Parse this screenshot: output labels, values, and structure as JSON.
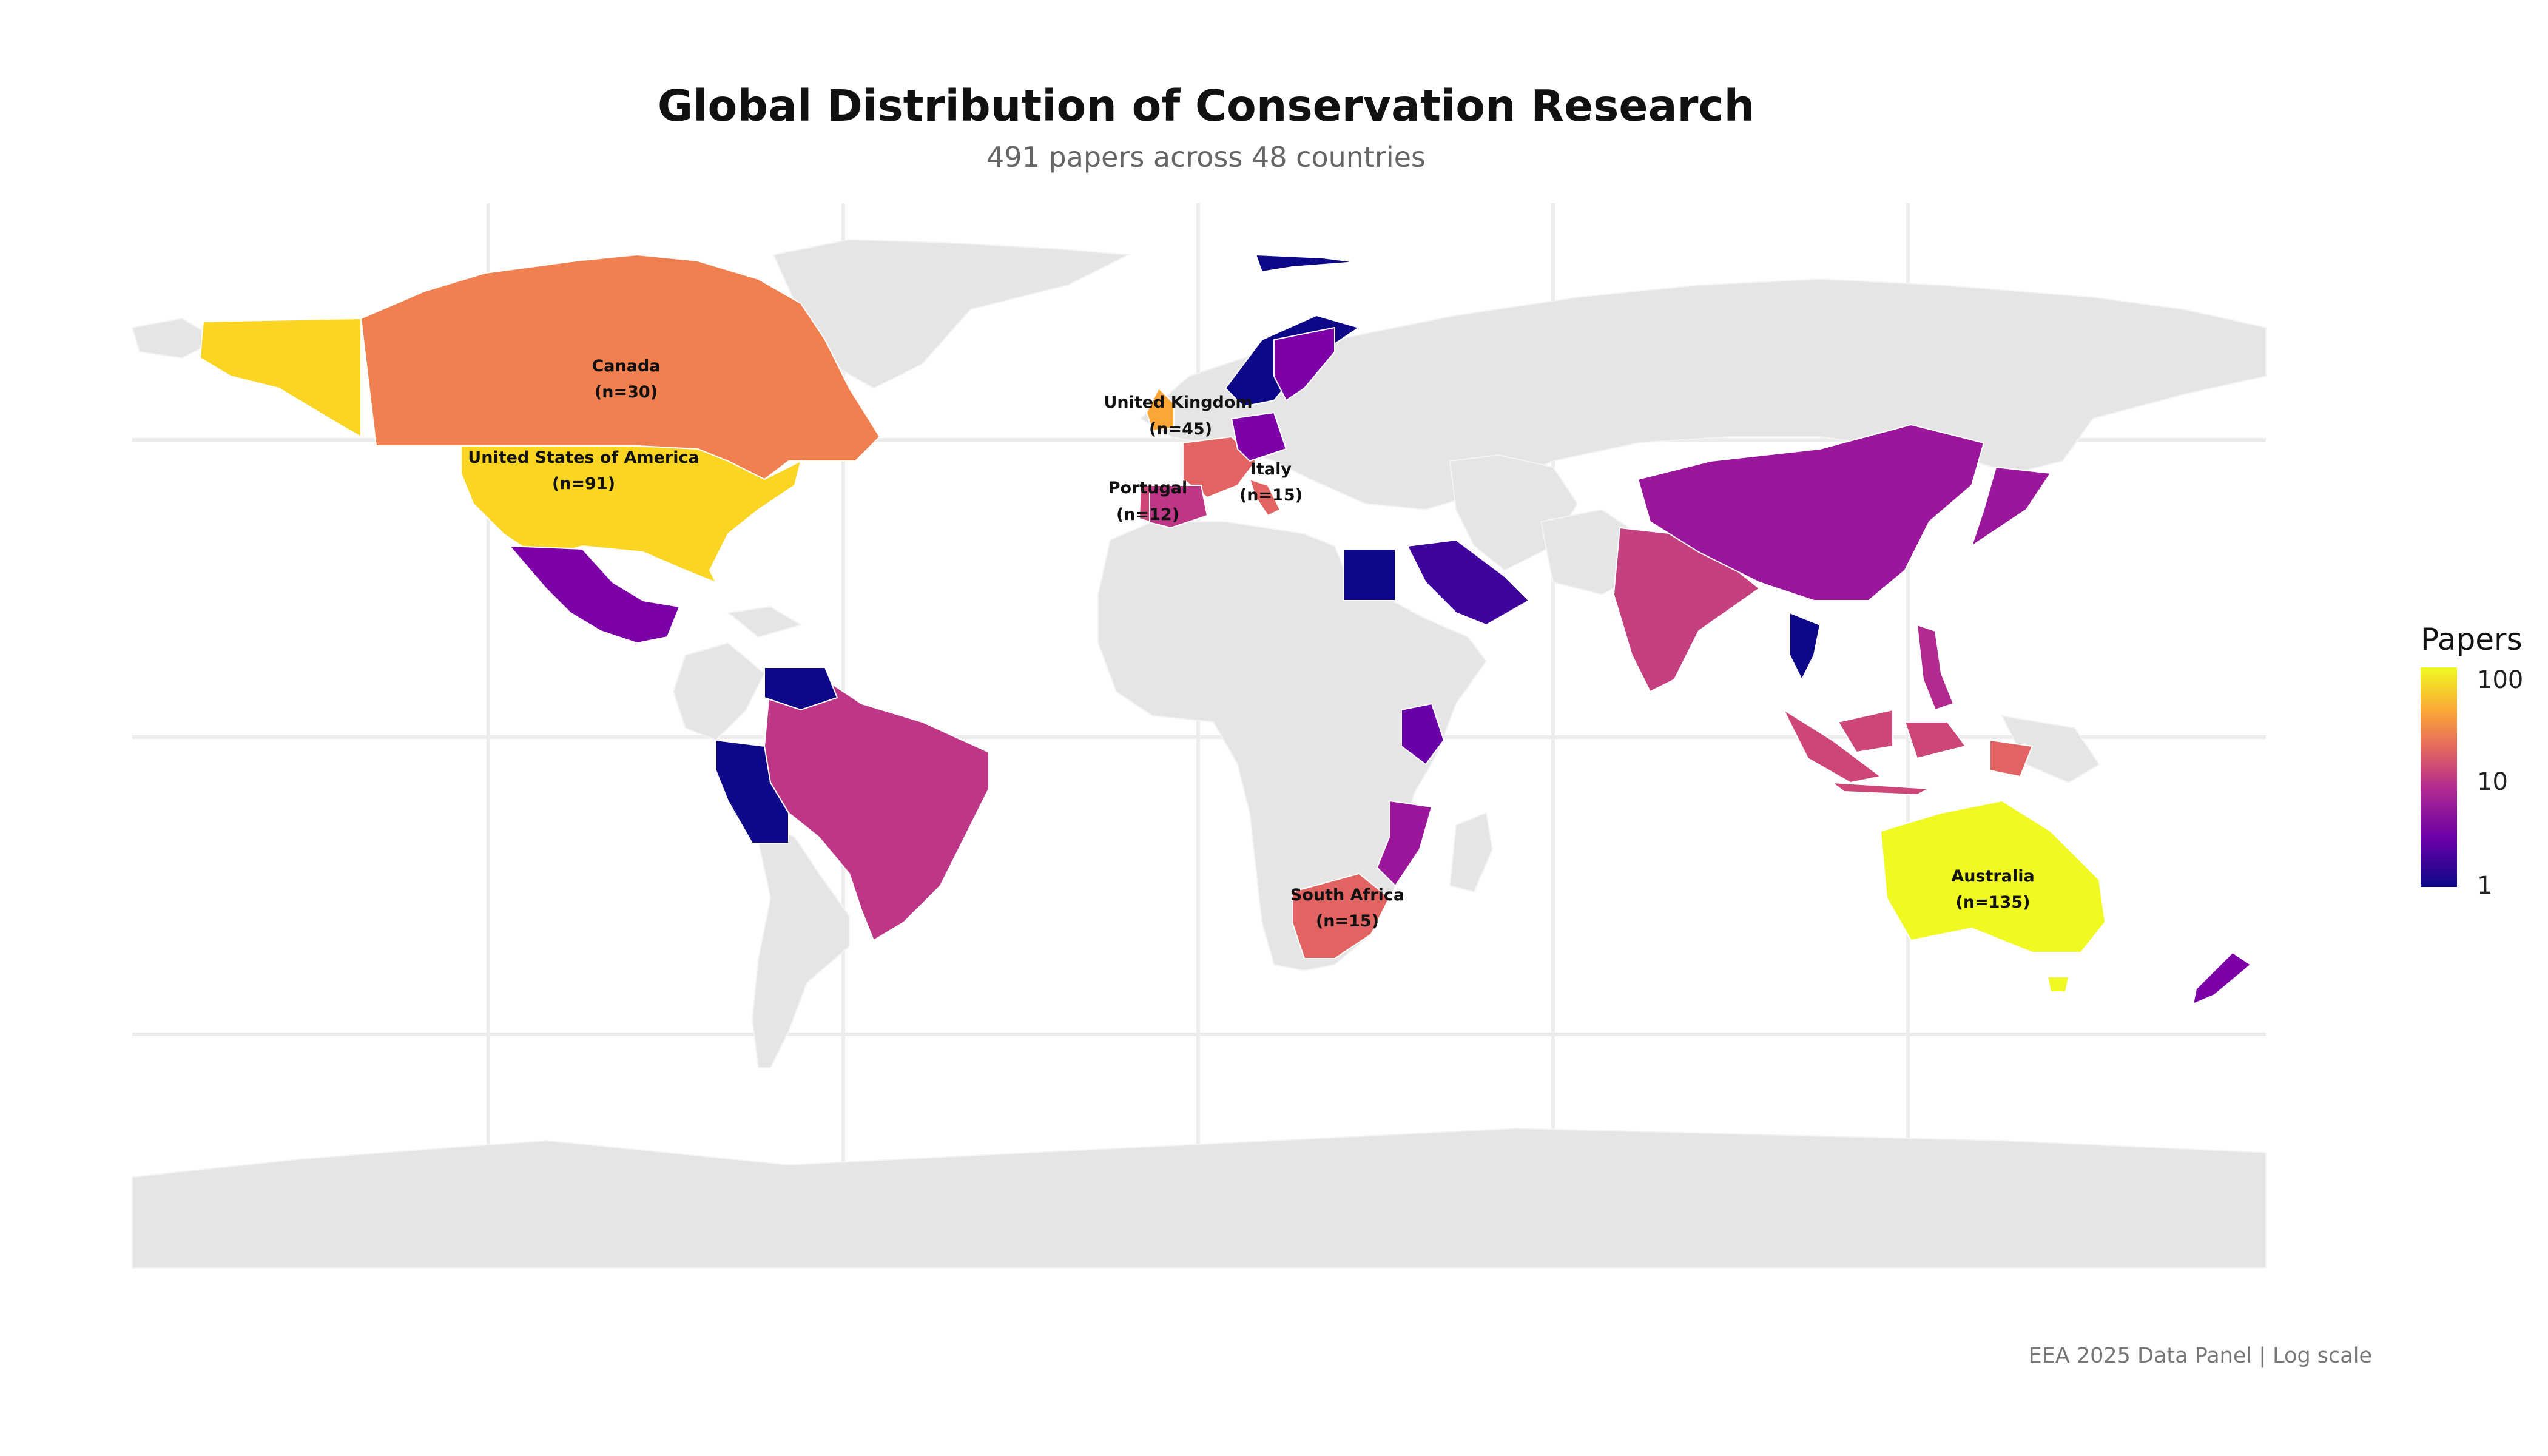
{
  "chart_data": {
    "type": "choropleth",
    "title": "Global Distribution of Conservation Research",
    "subtitle": "491 papers across 48 countries",
    "caption": "EEA 2025 Data Panel | Log scale",
    "legend": {
      "title": "Papers",
      "scale": "log",
      "ticks": [
        "100",
        "10",
        "1"
      ],
      "placement": "right",
      "colors": [
        "#0d0887",
        "#6a00a8",
        "#b12a90",
        "#e16462",
        "#fca636",
        "#f0f921"
      ]
    },
    "labeled_countries": [
      {
        "name": "Canada",
        "count": "(n=30)",
        "papers": 30
      },
      {
        "name": "United States of America",
        "count": "(n=91)",
        "papers": 91
      },
      {
        "name": "United Kingdom",
        "count": "(n=45)",
        "papers": 45
      },
      {
        "name": "Portugal",
        "count": "(n=12)",
        "papers": 12
      },
      {
        "name": "Italy",
        "count": "(n=15)",
        "papers": 15
      },
      {
        "name": "South Africa",
        "count": "(n=15)",
        "papers": 15
      },
      {
        "name": "Australia",
        "count": "(n=135)",
        "papers": 135
      }
    ],
    "colored_countries": [
      {
        "name": "Mexico",
        "papers": 4
      },
      {
        "name": "Brazil",
        "papers": 10
      },
      {
        "name": "Peru",
        "papers": 1
      },
      {
        "name": "Venezuela",
        "papers": 1
      },
      {
        "name": "Norway",
        "papers": 1
      },
      {
        "name": "Sweden",
        "papers": 4
      },
      {
        "name": "France",
        "papers": 15
      },
      {
        "name": "Germany",
        "papers": 5
      },
      {
        "name": "Spain",
        "papers": 10
      },
      {
        "name": "Egypt",
        "papers": 1
      },
      {
        "name": "Saudi Arabia",
        "papers": 2
      },
      {
        "name": "India",
        "papers": 10
      },
      {
        "name": "China",
        "papers": 6
      },
      {
        "name": "Japan",
        "papers": 6
      },
      {
        "name": "Thailand",
        "papers": 1
      },
      {
        "name": "Indonesia",
        "papers": 10
      },
      {
        "name": "Philippines",
        "papers": 7
      },
      {
        "name": "Kenya",
        "papers": 3
      },
      {
        "name": "Mozambique",
        "papers": 6
      },
      {
        "name": "New Zealand",
        "papers": 5
      },
      {
        "name": "Papua New Guinea",
        "papers": 12
      }
    ]
  }
}
